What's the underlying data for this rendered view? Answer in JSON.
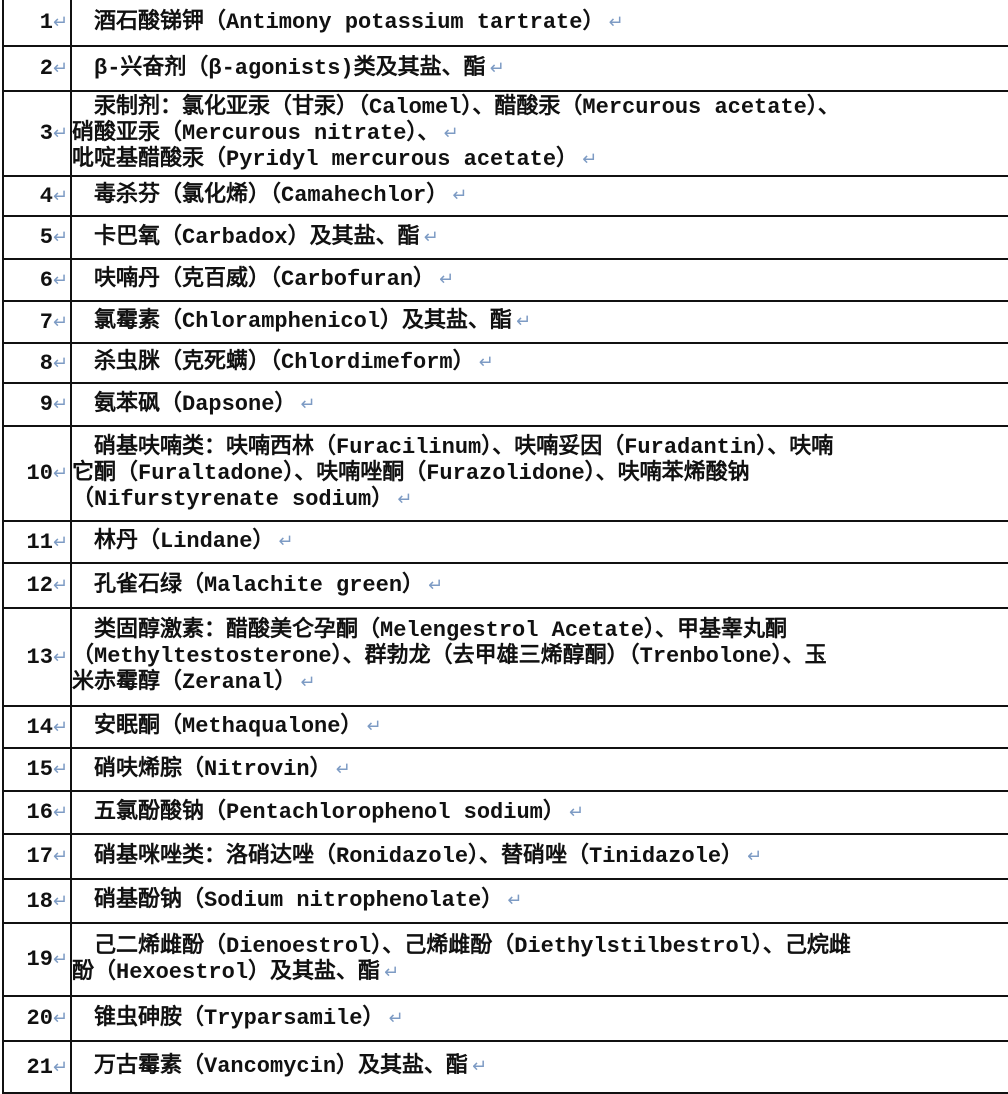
{
  "para_mark": "↵",
  "mark_color": "#7d9bc4",
  "rows": [
    {
      "no": "1",
      "lines": [
        "　酒石酸锑钾（Antimony potassium tartrate）"
      ]
    },
    {
      "no": "2",
      "lines": [
        "　β-兴奋剂（β-agonists)类及其盐、酯"
      ]
    },
    {
      "no": "3",
      "lines": [
        "　汞制剂：氯化亚汞（甘汞）（Calomel）、醋酸汞（Mercurous acetate）、",
        "硝酸亚汞（Mercurous nitrate）、",
        "吡啶基醋酸汞（Pyridyl mercurous acetate）"
      ],
      "marks": [
        1,
        2
      ]
    },
    {
      "no": "4",
      "lines": [
        "　毒杀芬（氯化烯）（Camahechlor）"
      ]
    },
    {
      "no": "5",
      "lines": [
        "　卡巴氧（Carbadox）及其盐、酯"
      ]
    },
    {
      "no": "6",
      "lines": [
        "　呋喃丹（克百威）（Carbofuran）"
      ]
    },
    {
      "no": "7",
      "lines": [
        "　氯霉素（Chloramphenicol）及其盐、酯"
      ]
    },
    {
      "no": "8",
      "lines": [
        "　杀虫脒（克死螨）（Chlordimeform）"
      ]
    },
    {
      "no": "9",
      "lines": [
        "　氨苯砜（Dapsone）"
      ]
    },
    {
      "no": "10",
      "lines": [
        "　硝基呋喃类：呋喃西林（Furacilinum）、呋喃妥因（Furadantin）、呋喃",
        "它酮（Furaltadone）、呋喃唑酮（Furazolidone）、呋喃苯烯酸钠",
        " （Nifurstyrenate sodium）"
      ]
    },
    {
      "no": "11",
      "lines": [
        "　林丹（Lindane）"
      ]
    },
    {
      "no": "12",
      "lines": [
        "　孔雀石绿（Malachite green）"
      ]
    },
    {
      "no": "13",
      "lines": [
        "　类固醇激素：醋酸美仑孕酮（Melengestrol Acetate）、甲基睾丸酮",
        "（Methyltestosterone）、群勃龙（去甲雄三烯醇酮）（Trenbolone）、玉",
        "米赤霉醇（Zeranal）"
      ]
    },
    {
      "no": "14",
      "lines": [
        "　安眠酮（Methaqualone）"
      ]
    },
    {
      "no": "15",
      "lines": [
        "　硝呋烯腙（Nitrovin）"
      ]
    },
    {
      "no": "16",
      "lines": [
        "　五氯酚酸钠（Pentachlorophenol sodium）"
      ]
    },
    {
      "no": "17",
      "lines": [
        "　硝基咪唑类：洛硝达唑（Ronidazole）、替硝唑（Tinidazole）"
      ]
    },
    {
      "no": "18",
      "lines": [
        "　硝基酚钠（Sodium nitrophenolate）"
      ]
    },
    {
      "no": "19",
      "lines": [
        "　己二烯雌酚（Dienoestrol）、己烯雌酚（Diethylstilbestrol）、己烷雌",
        "酚（Hexoestrol）及其盐、酯"
      ]
    },
    {
      "no": "20",
      "lines": [
        "　锥虫砷胺（Tryparsamile）"
      ]
    },
    {
      "no": "21",
      "lines": [
        "　万古霉素（Vancomycin）及其盐、酯"
      ]
    }
  ]
}
